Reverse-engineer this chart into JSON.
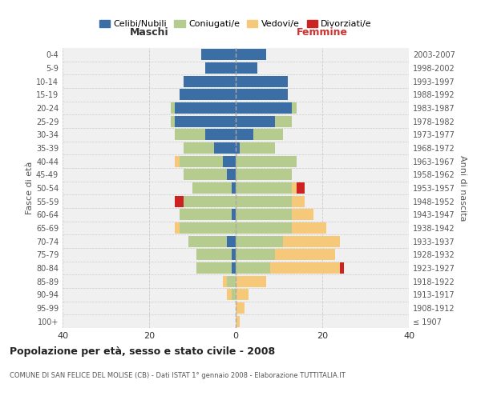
{
  "age_groups": [
    "100+",
    "95-99",
    "90-94",
    "85-89",
    "80-84",
    "75-79",
    "70-74",
    "65-69",
    "60-64",
    "55-59",
    "50-54",
    "45-49",
    "40-44",
    "35-39",
    "30-34",
    "25-29",
    "20-24",
    "15-19",
    "10-14",
    "5-9",
    "0-4"
  ],
  "birth_years": [
    "≤ 1907",
    "1908-1912",
    "1913-1917",
    "1918-1922",
    "1923-1927",
    "1928-1932",
    "1933-1937",
    "1938-1942",
    "1943-1947",
    "1948-1952",
    "1953-1957",
    "1958-1962",
    "1963-1967",
    "1968-1972",
    "1973-1977",
    "1978-1982",
    "1983-1987",
    "1988-1992",
    "1993-1997",
    "1998-2002",
    "2003-2007"
  ],
  "colors": {
    "celibi": "#3a6ea5",
    "coniugati": "#b5cc8e",
    "vedovi": "#f5c87a",
    "divorziati": "#cc2222"
  },
  "maschi": {
    "celibi": [
      0,
      0,
      0,
      0,
      1,
      1,
      2,
      0,
      1,
      0,
      1,
      2,
      3,
      5,
      7,
      14,
      14,
      13,
      12,
      7,
      8
    ],
    "coniugati": [
      0,
      0,
      1,
      2,
      8,
      8,
      9,
      13,
      12,
      12,
      9,
      10,
      10,
      7,
      7,
      1,
      1,
      0,
      0,
      0,
      0
    ],
    "vedovi": [
      0,
      0,
      1,
      1,
      0,
      0,
      0,
      1,
      0,
      0,
      0,
      0,
      1,
      0,
      0,
      0,
      0,
      0,
      0,
      0,
      0
    ],
    "divorziati": [
      0,
      0,
      0,
      0,
      0,
      0,
      0,
      0,
      0,
      2,
      0,
      0,
      0,
      0,
      0,
      0,
      0,
      0,
      0,
      0,
      0
    ]
  },
  "femmine": {
    "celibi": [
      0,
      0,
      0,
      0,
      0,
      0,
      0,
      0,
      0,
      0,
      0,
      0,
      0,
      1,
      4,
      9,
      13,
      12,
      12,
      5,
      7
    ],
    "coniugati": [
      0,
      0,
      0,
      0,
      8,
      9,
      11,
      13,
      13,
      13,
      13,
      13,
      14,
      8,
      7,
      4,
      1,
      0,
      0,
      0,
      0
    ],
    "vedovi": [
      1,
      2,
      3,
      7,
      16,
      14,
      13,
      8,
      5,
      3,
      1,
      0,
      0,
      0,
      0,
      0,
      0,
      0,
      0,
      0,
      0
    ],
    "divorziati": [
      0,
      0,
      0,
      0,
      1,
      0,
      0,
      0,
      0,
      0,
      2,
      0,
      0,
      0,
      0,
      0,
      0,
      0,
      0,
      0,
      0
    ]
  },
  "title": "Popolazione per età, sesso e stato civile - 2008",
  "subtitle": "COMUNE DI SAN FELICE DEL MOLISE (CB) - Dati ISTAT 1° gennaio 2008 - Elaborazione TUTTITALIA.IT",
  "xlabel_left": "Maschi",
  "xlabel_right": "Femmine",
  "ylabel_left": "Fasce di età",
  "ylabel_right": "Anni di nascita",
  "xlim": 40,
  "bg_color": "#f0f0f0",
  "grid_color": "#cccccc"
}
